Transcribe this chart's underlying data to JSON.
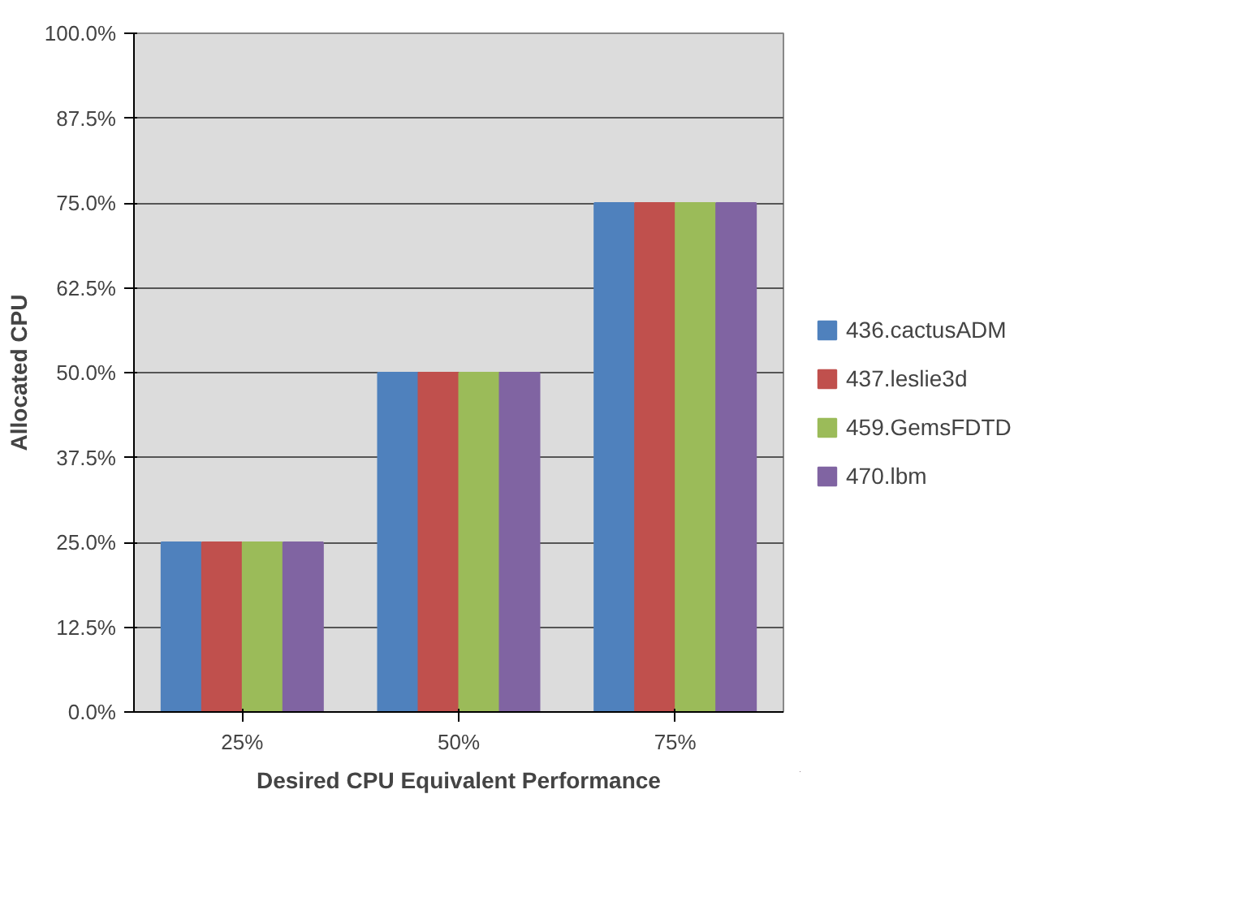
{
  "chart_data": {
    "type": "bar",
    "xlabel": "Desired CPU Equivalent Performance",
    "ylabel": "Allocated CPU",
    "categories": [
      "25%",
      "50%",
      "75%"
    ],
    "series": [
      {
        "name": "436.cactusADM",
        "color": "#4f81bd",
        "values": [
          25,
          50,
          75
        ]
      },
      {
        "name": "437.leslie3d",
        "color": "#c0504d",
        "values": [
          25,
          50,
          75
        ]
      },
      {
        "name": "459.GemsFDTD",
        "color": "#9bbb59",
        "values": [
          25,
          50,
          75
        ]
      },
      {
        "name": "470.lbm",
        "color": "#8064a2",
        "values": [
          25,
          50,
          75
        ]
      }
    ],
    "ylim": [
      0,
      100
    ],
    "yticks": [
      {
        "value": 0,
        "label": "0.0%"
      },
      {
        "value": 12.5,
        "label": "12.5%"
      },
      {
        "value": 25,
        "label": "25.0%"
      },
      {
        "value": 37.5,
        "label": "37.5%"
      },
      {
        "value": 50,
        "label": "50.0%"
      },
      {
        "value": 62.5,
        "label": "62.5%"
      },
      {
        "value": 75,
        "label": "75.0%"
      },
      {
        "value": 87.5,
        "label": "87.5%"
      },
      {
        "value": 100,
        "label": "100.0%"
      }
    ],
    "grid": "y",
    "legend": "right"
  }
}
